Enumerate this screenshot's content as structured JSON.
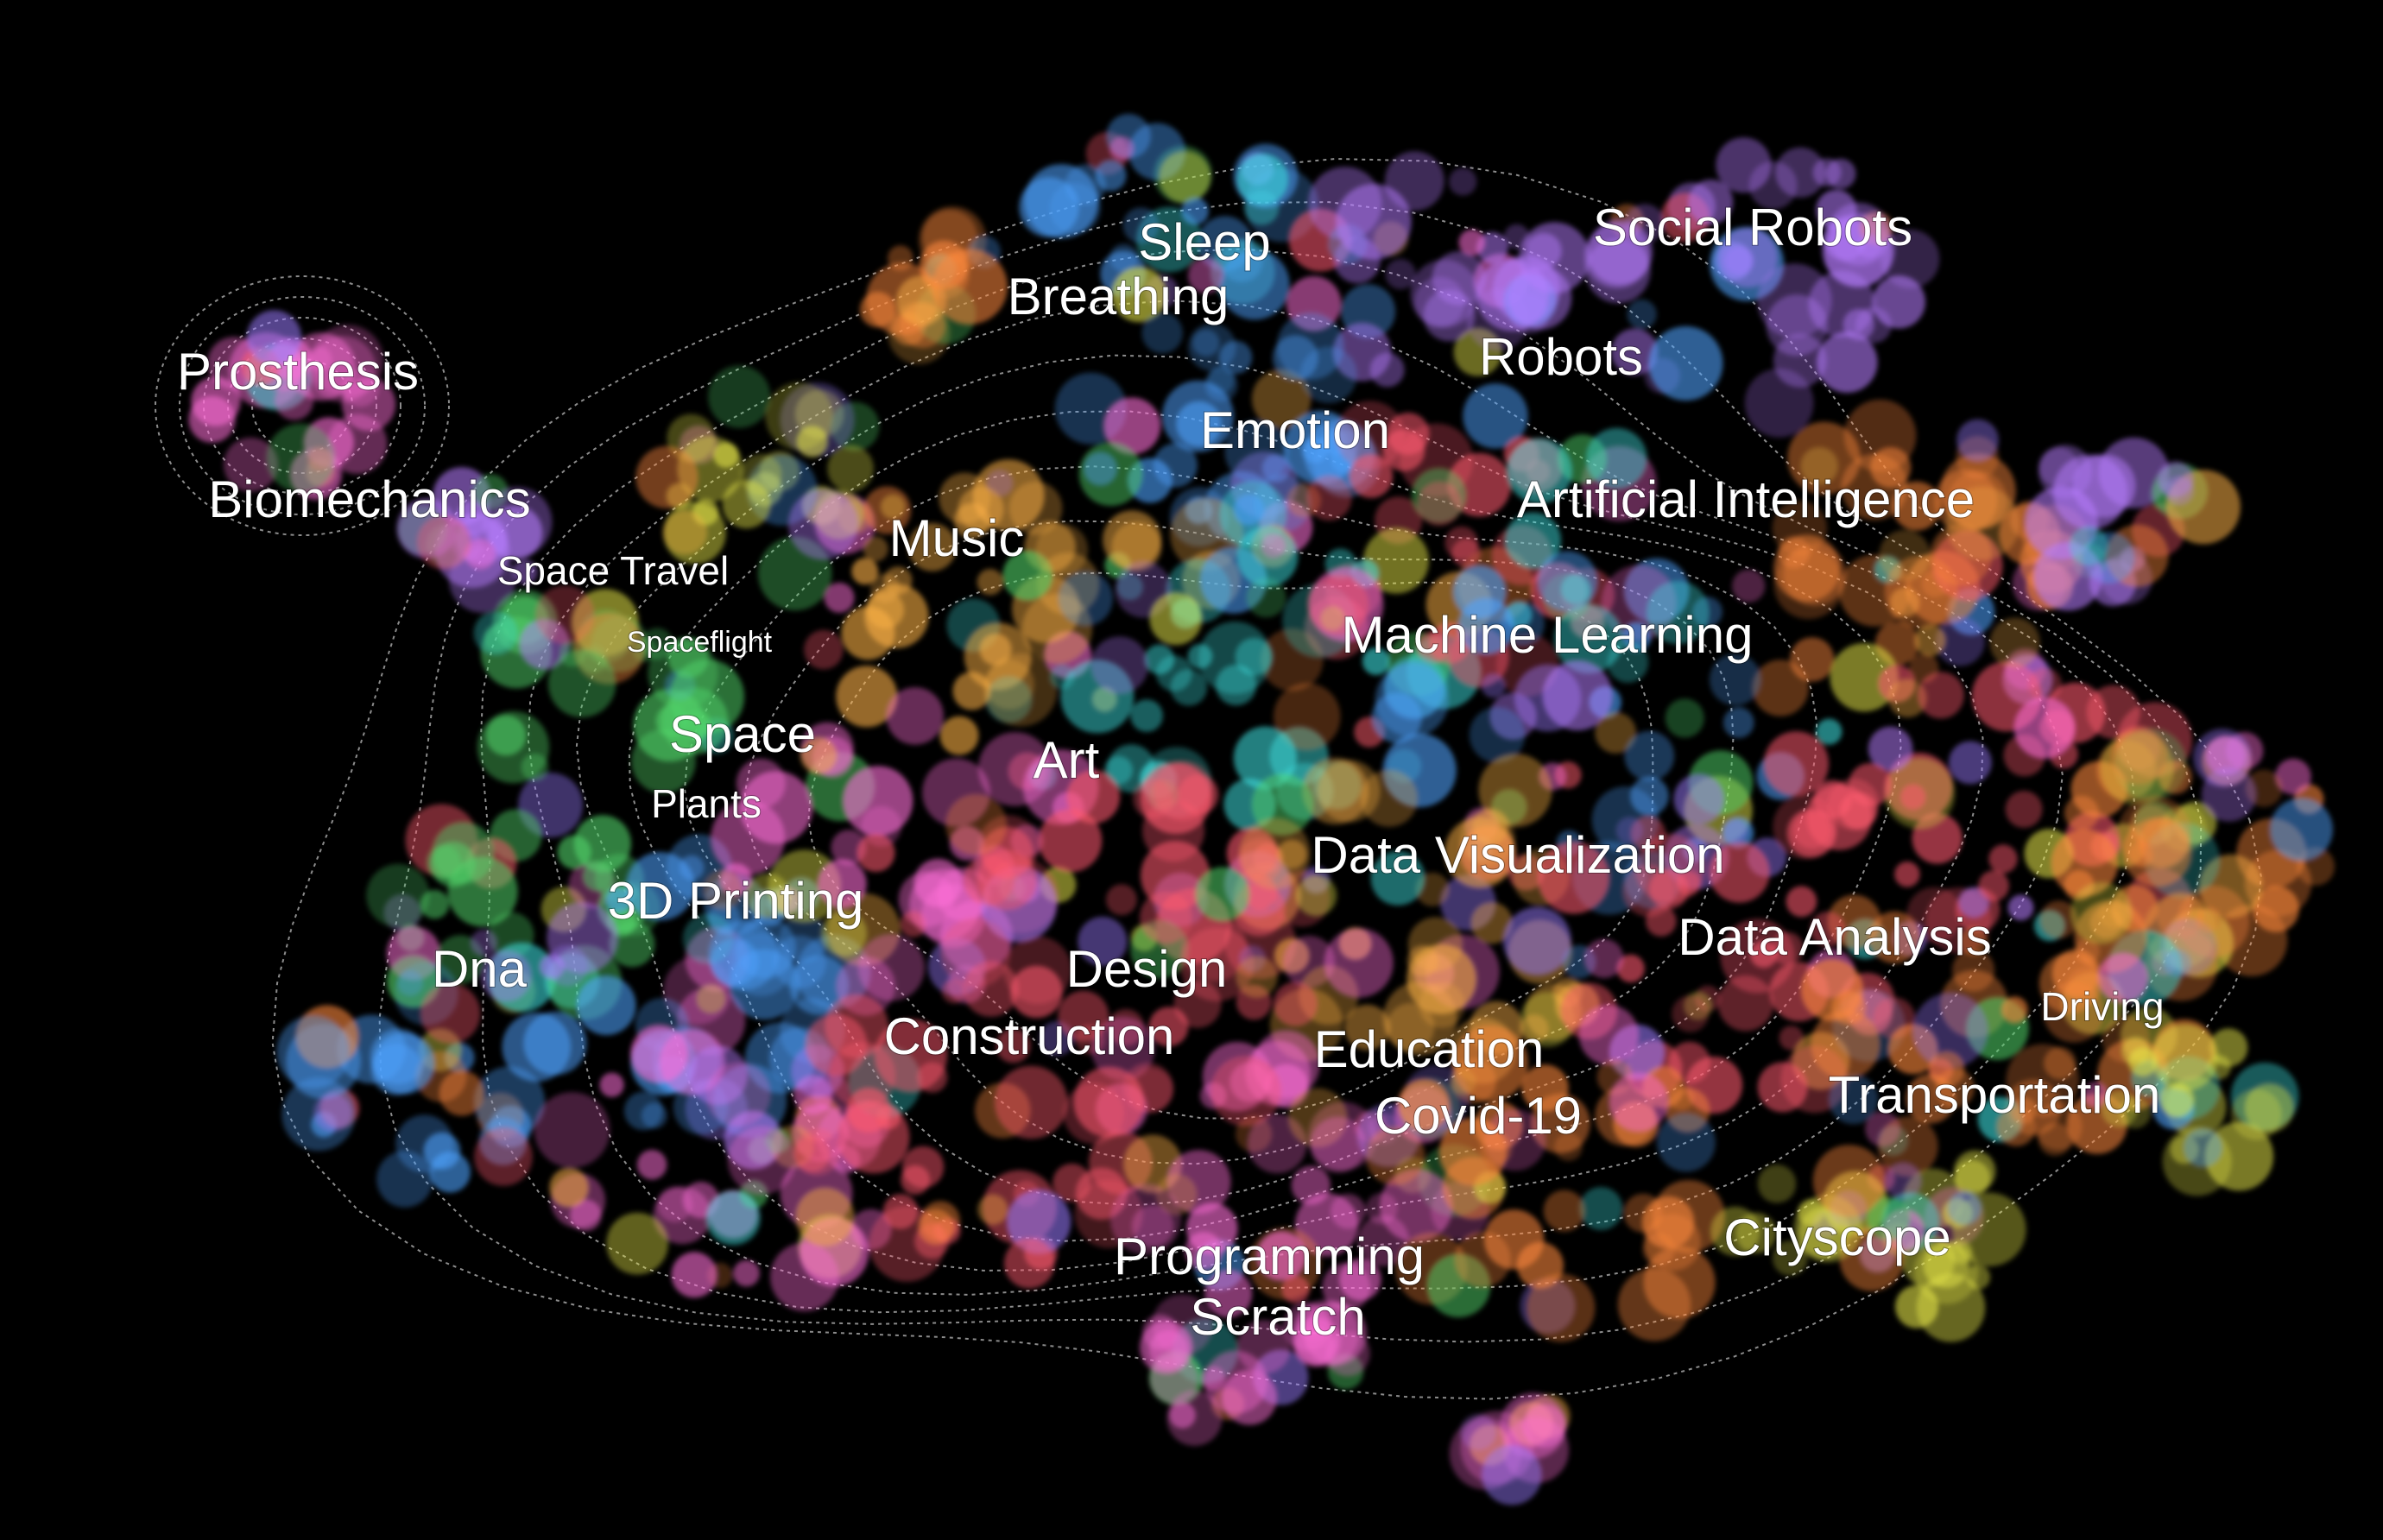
{
  "chart_data": {
    "type": "scatter",
    "title": "",
    "xlabel": "",
    "ylabel": "",
    "grid": false,
    "legend": "none",
    "background": "#000000",
    "palette": [
      "#ff6fd8",
      "#e8e84a",
      "#4fa3ff",
      "#52d46a",
      "#ff8a3d",
      "#b77dff",
      "#ff5a6e",
      "#3fe0e0",
      "#ffb347",
      "#9a7bff"
    ],
    "topic_labels": [
      {
        "text": "Sleep",
        "size": "medium"
      },
      {
        "text": "Social Robots",
        "size": "medium"
      },
      {
        "text": "Breathing",
        "size": "medium"
      },
      {
        "text": "Prosthesis",
        "size": "medium"
      },
      {
        "text": "Robots",
        "size": "medium"
      },
      {
        "text": "Emotion",
        "size": "medium"
      },
      {
        "text": "Biomechanics",
        "size": "medium"
      },
      {
        "text": "Artificial Intelligence",
        "size": "medium"
      },
      {
        "text": "Music",
        "size": "medium"
      },
      {
        "text": "Space Travel",
        "size": "small"
      },
      {
        "text": "Spaceflight",
        "size": "tiny"
      },
      {
        "text": "Machine Learning",
        "size": "medium"
      },
      {
        "text": "Space",
        "size": "medium"
      },
      {
        "text": "Art",
        "size": "medium"
      },
      {
        "text": "Plants",
        "size": "small"
      },
      {
        "text": "Data Visualization",
        "size": "medium"
      },
      {
        "text": "3D Printing",
        "size": "medium"
      },
      {
        "text": "Data Analysis",
        "size": "medium"
      },
      {
        "text": "Dna",
        "size": "medium"
      },
      {
        "text": "Design",
        "size": "medium"
      },
      {
        "text": "Driving",
        "size": "small"
      },
      {
        "text": "Construction",
        "size": "medium"
      },
      {
        "text": "Education",
        "size": "medium"
      },
      {
        "text": "Transportation",
        "size": "medium"
      },
      {
        "text": "Covid-19",
        "size": "medium"
      },
      {
        "text": "Cityscope",
        "size": "medium"
      },
      {
        "text": "Programming",
        "size": "medium"
      },
      {
        "text": "Scratch",
        "size": "medium"
      }
    ]
  }
}
